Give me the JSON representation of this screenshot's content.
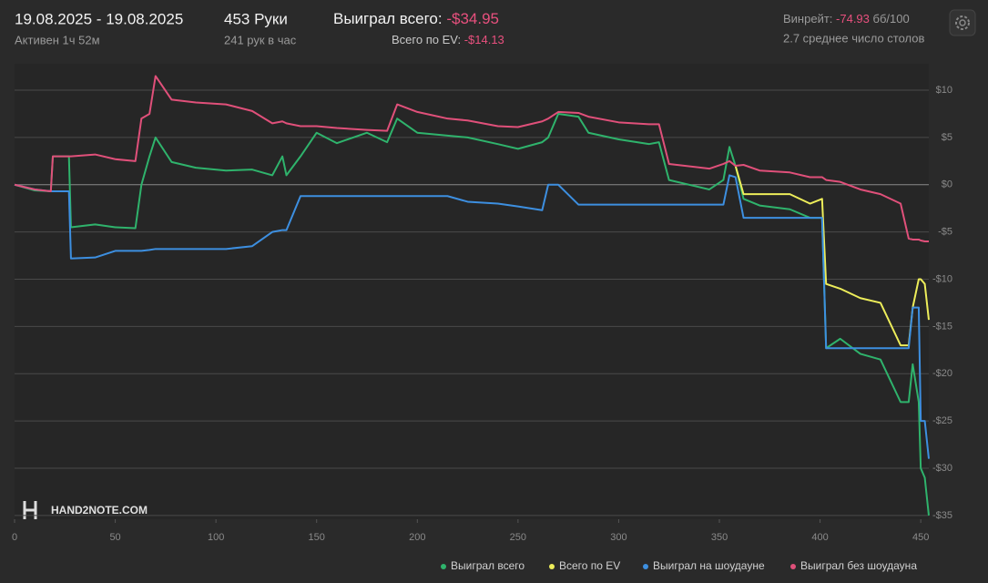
{
  "header": {
    "date_range": "19.08.2025 - 19.08.2025",
    "active": "Активен 1ч 52м",
    "hands": "453 Руки",
    "hands_per_hour": "241 рук в час",
    "won_label": "Выиграл всего:",
    "won_value": "-$34.95",
    "ev_label": "Всего по EV:",
    "ev_value": "-$14.13",
    "winrate_label": "Винрейт:",
    "winrate_value": "-74.93",
    "winrate_unit": "бб/100",
    "tables": "2.7 среднее число столов"
  },
  "chart_data": {
    "type": "line",
    "watermark": "HAND2NOTE.COM",
    "grid": true,
    "x": [
      0,
      10,
      18,
      19,
      27,
      28,
      40,
      50,
      60,
      63,
      67,
      70,
      78,
      90,
      105,
      118,
      128,
      133,
      135,
      142,
      150,
      160,
      175,
      185,
      190,
      200,
      215,
      225,
      240,
      250,
      262,
      265,
      270,
      280,
      285,
      300,
      315,
      320,
      325,
      345,
      352,
      355,
      358,
      362,
      370,
      385,
      395,
      401,
      403,
      410,
      420,
      430,
      440,
      444,
      446,
      449,
      450,
      452,
      454
    ],
    "series": [
      {
        "name": "Выиграл всего",
        "color": "#2fb36c",
        "values": [
          0,
          -0.6,
          -0.7,
          3,
          3,
          -4.5,
          -4.2,
          -4.5,
          -4.6,
          0,
          3,
          5,
          2.4,
          1.8,
          1.5,
          1.6,
          1,
          3,
          1,
          3,
          5.5,
          4.4,
          5.5,
          4.5,
          7,
          5.5,
          5.2,
          5,
          4.3,
          3.8,
          4.5,
          5,
          7.5,
          7.2,
          5.5,
          4.8,
          4.3,
          4.5,
          0.5,
          -0.5,
          0.5,
          4,
          2,
          -1.5,
          -2.2,
          -2.6,
          -3.5,
          -3.5,
          -17.3,
          -16.3,
          -17.9,
          -18.5,
          -23,
          -23,
          -19,
          -23,
          -30,
          -31,
          -35
        ]
      },
      {
        "name": "Всего по EV",
        "color": "#eded5a",
        "values": [
          null,
          null,
          null,
          null,
          null,
          null,
          null,
          null,
          null,
          null,
          null,
          null,
          null,
          null,
          null,
          null,
          null,
          null,
          null,
          null,
          null,
          null,
          null,
          null,
          null,
          null,
          null,
          null,
          null,
          null,
          null,
          null,
          null,
          null,
          null,
          null,
          null,
          null,
          null,
          null,
          null,
          null,
          2,
          -1,
          -1,
          -1,
          -2,
          -1.5,
          -10.5,
          -11,
          -12,
          -12.5,
          -17,
          -17,
          -13,
          -10,
          -10,
          -10.5,
          -14.3
        ]
      },
      {
        "name": "Выиграл на шоудауне",
        "color": "#3d8fe0",
        "values": [
          0,
          -0.5,
          -0.7,
          -0.7,
          -0.7,
          -7.8,
          -7.7,
          -7,
          -7,
          -7,
          -6.9,
          -6.8,
          -6.8,
          -6.8,
          -6.8,
          -6.5,
          -5,
          -4.8,
          -4.8,
          -1.2,
          -1.2,
          -1.2,
          -1.2,
          -1.2,
          -1.2,
          -1.2,
          -1.2,
          -1.8,
          -2,
          -2.3,
          -2.7,
          0,
          0,
          -2.1,
          -2.1,
          -2.1,
          -2.1,
          -2.1,
          -2.1,
          -2.1,
          -2.1,
          1,
          0.8,
          -3.5,
          -3.5,
          -3.5,
          -3.5,
          -3.5,
          -17.3,
          -17.3,
          -17.3,
          -17.3,
          -17.3,
          -17.3,
          -13,
          -13,
          -25,
          -25,
          -29
        ]
      },
      {
        "name": "Выиграл без шоудауна",
        "color": "#e0507a",
        "values": [
          0,
          -0.5,
          -0.7,
          3,
          3,
          3,
          3.2,
          2.7,
          2.5,
          7,
          7.5,
          11.5,
          9,
          8.7,
          8.5,
          7.8,
          6.5,
          6.7,
          6.5,
          6.2,
          6.2,
          6,
          5.8,
          5.7,
          8.5,
          7.7,
          7,
          6.8,
          6.2,
          6.1,
          6.7,
          7,
          7.7,
          7.6,
          7.2,
          6.6,
          6.4,
          6.4,
          2.2,
          1.7,
          2.2,
          2.5,
          2,
          2.1,
          1.5,
          1.3,
          0.8,
          0.8,
          0.5,
          0.3,
          -0.5,
          -1,
          -2,
          -5.7,
          -5.8,
          -5.8,
          -5.9,
          -6,
          -6
        ]
      }
    ],
    "xlim": [
      0,
      454
    ],
    "ylim": [
      -35.4,
      12.8
    ],
    "xticks": [
      0,
      50,
      100,
      150,
      200,
      250,
      300,
      350,
      400,
      450
    ],
    "yticks": [
      {
        "value": 10,
        "label": "$10"
      },
      {
        "value": 5,
        "label": "$5"
      },
      {
        "value": 0,
        "label": "$0"
      },
      {
        "value": -5,
        "label": "-$5"
      },
      {
        "value": -10,
        "label": "-$10"
      },
      {
        "value": -15,
        "label": "-$15"
      },
      {
        "value": -20,
        "label": "-$20"
      },
      {
        "value": -25,
        "label": "-$25"
      },
      {
        "value": -30,
        "label": "-$30"
      },
      {
        "value": -35,
        "label": "-$35"
      }
    ]
  }
}
